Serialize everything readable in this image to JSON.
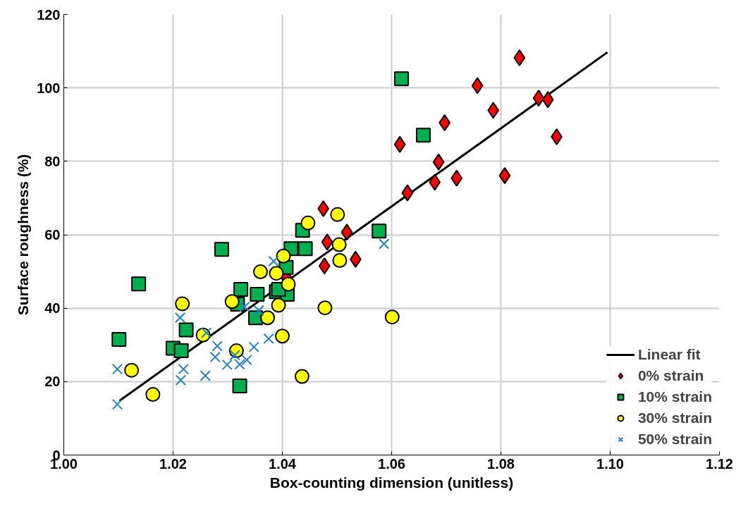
{
  "chart_data": {
    "type": "scatter",
    "xlabel": "Box-counting dimension (unitless)",
    "ylabel": "Surface roughness (%)",
    "xlim": [
      1.0,
      1.12
    ],
    "xticks": [
      {
        "value": 1.0,
        "label": "1.00"
      },
      {
        "value": 1.02,
        "label": "1.02"
      },
      {
        "value": 1.04,
        "label": "1.04"
      },
      {
        "value": 1.06,
        "label": "1.06"
      },
      {
        "value": 1.08,
        "label": "1.08"
      },
      {
        "value": 1.1,
        "label": "1.10"
      },
      {
        "value": 1.12,
        "label": "1.12"
      }
    ],
    "ylim": [
      0,
      120
    ],
    "yticks": [
      0,
      20,
      40,
      60,
      80,
      100,
      120
    ],
    "grid": true,
    "legend": "bottom right",
    "series": [
      {
        "name": "Linear fit",
        "type": "line",
        "color": "#000000",
        "marker": "none",
        "x": [
          1.0102,
          1.0995
        ],
        "values": [
          14.8,
          109.7
        ]
      },
      {
        "name": "0% strain",
        "color": "#ff0000",
        "marker": "diamond",
        "x": [
          1.0834,
          1.0757,
          1.0869,
          1.0886,
          1.0786,
          1.0697,
          1.0615,
          1.0686,
          1.0902,
          1.0679,
          1.0719,
          1.0807,
          1.0629,
          1.0475,
          1.0518,
          1.0482,
          1.0477,
          1.0534,
          1.0407
        ],
        "values": [
          108.2,
          100.6,
          97.2,
          96.8,
          93.9,
          90.5,
          84.6,
          79.8,
          86.7,
          74.3,
          75.4,
          76.1,
          71.4,
          67.1,
          60.7,
          58.0,
          51.5,
          53.3,
          48.4
        ]
      },
      {
        "name": "10% strain",
        "color": "#00b050",
        "marker": "square",
        "x": [
          1.0618,
          1.0658,
          1.0577,
          1.0437,
          1.0416,
          1.0442,
          1.0389,
          1.0409,
          1.0407,
          1.0289,
          1.0137,
          1.0101,
          1.0224,
          1.02,
          1.0215,
          1.0322,
          1.0324,
          1.0354,
          1.0318,
          1.0351,
          1.0393
        ],
        "values": [
          102.5,
          87.1,
          61.0,
          61.2,
          56.2,
          56.2,
          44.5,
          43.8,
          51.1,
          56.0,
          46.6,
          31.5,
          34.1,
          29.1,
          28.4,
          18.8,
          45.1,
          43.8,
          41.1,
          37.4,
          45.1
        ]
      },
      {
        "name": "30% strain",
        "color": "#ffff00",
        "marker": "circle",
        "x": [
          1.0501,
          1.0447,
          1.0504,
          1.0505,
          1.0402,
          1.0389,
          1.0411,
          1.0393,
          1.0478,
          1.0601,
          1.04,
          1.0436,
          1.036,
          1.0373,
          1.0308,
          1.0217,
          1.0255,
          1.0316,
          1.0124,
          1.0163
        ],
        "values": [
          65.5,
          63.2,
          57.3,
          53.0,
          54.2,
          49.5,
          46.5,
          40.8,
          40.1,
          37.6,
          32.4,
          21.4,
          49.9,
          37.4,
          41.8,
          41.2,
          32.7,
          28.4,
          23.1,
          16.5
        ]
      },
      {
        "name": "50% strain",
        "color": "#1f7fd0",
        "marker": "cross",
        "x": [
          1.0586,
          1.0384,
          1.0213,
          1.0098,
          1.0331,
          1.0357,
          1.0261,
          1.0281,
          1.0277,
          1.0313,
          1.0348,
          1.0375,
          1.0322,
          1.0335,
          1.0219,
          1.0214,
          1.0259,
          1.0299,
          1.0098
        ],
        "values": [
          57.5,
          52.8,
          37.4,
          23.4,
          40.4,
          39.4,
          33.3,
          29.7,
          26.7,
          27.2,
          29.4,
          31.7,
          24.7,
          25.9,
          23.4,
          20.4,
          21.6,
          24.6,
          13.8
        ]
      }
    ]
  }
}
